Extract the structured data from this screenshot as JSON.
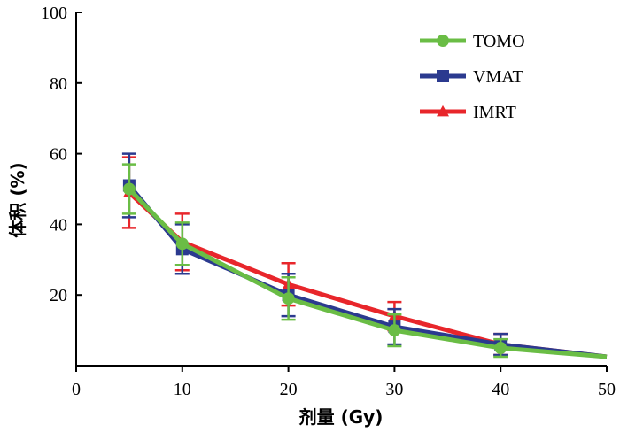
{
  "chart_data": {
    "type": "line",
    "xlabel": "剂量 (Gy)",
    "ylabel": "体积 (%)",
    "xlim": [
      0,
      50
    ],
    "ylim": [
      0,
      100
    ],
    "xticks": [
      0,
      10,
      20,
      30,
      40,
      50
    ],
    "yticks": [
      20,
      40,
      60,
      80,
      100
    ],
    "grid": false,
    "legend_position": "top-right",
    "series": [
      {
        "name": "IMRT",
        "color": "#e8262b",
        "marker": "triangle",
        "points": [
          {
            "x": 5,
            "y": 49,
            "err": 10
          },
          {
            "x": 10,
            "y": 35,
            "err": 8
          },
          {
            "x": 20,
            "y": 23,
            "err": 6
          },
          {
            "x": 30,
            "y": 14,
            "err": 4
          },
          {
            "x": 40,
            "y": 6,
            "err": 3
          },
          {
            "x": 50,
            "y": 2.5,
            "err": 0
          }
        ]
      },
      {
        "name": "VMAT",
        "color": "#2b3a8f",
        "marker": "square",
        "points": [
          {
            "x": 5,
            "y": 51,
            "err": 9
          },
          {
            "x": 10,
            "y": 33,
            "err": 7
          },
          {
            "x": 20,
            "y": 20,
            "err": 6
          },
          {
            "x": 30,
            "y": 11,
            "err": 5
          },
          {
            "x": 40,
            "y": 6,
            "err": 3
          },
          {
            "x": 50,
            "y": 2.5,
            "err": 0
          }
        ]
      },
      {
        "name": "TOMO",
        "color": "#6abd45",
        "marker": "circle",
        "points": [
          {
            "x": 5,
            "y": 50,
            "err": 7
          },
          {
            "x": 10,
            "y": 34.5,
            "err": 6
          },
          {
            "x": 20,
            "y": 19,
            "err": 6
          },
          {
            "x": 30,
            "y": 10,
            "err": 4.5
          },
          {
            "x": 40,
            "y": 5,
            "err": 2.5
          },
          {
            "x": 50,
            "y": 2.5,
            "err": 0
          }
        ]
      }
    ],
    "legend_order": [
      "TOMO",
      "VMAT",
      "IMRT"
    ]
  }
}
